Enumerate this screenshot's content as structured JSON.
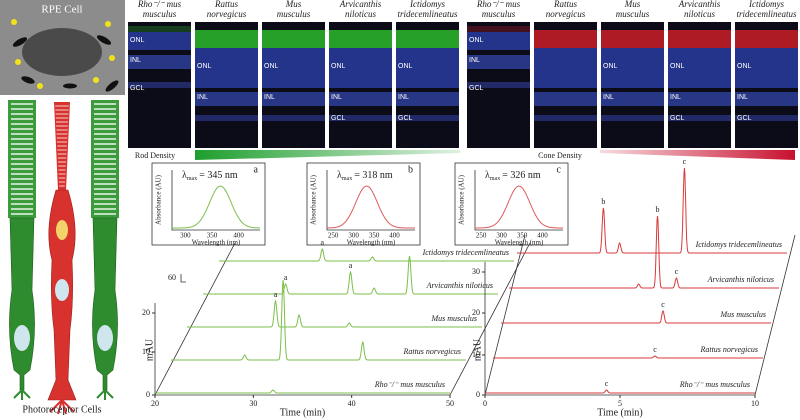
{
  "cell_diagram": {
    "title": "RPE Cell",
    "caption": "Photoreceptor Cells"
  },
  "rod_panels": [
    {
      "species": [
        "Rho⁻/⁻ mus",
        "musculus"
      ],
      "layers": [
        "ONL",
        "INL",
        "GCL"
      ]
    },
    {
      "species": [
        "Rattus",
        "norvegicus"
      ],
      "layers": [
        "ONL",
        "INL"
      ]
    },
    {
      "species": [
        "Mus",
        "musculus"
      ],
      "layers": [
        "ONL",
        "INL"
      ]
    },
    {
      "species": [
        "Arvicanthis",
        "niloticus"
      ],
      "layers": [
        "ONL",
        "INL",
        "GCL"
      ]
    },
    {
      "species": [
        "Ictidomys",
        "tridecemlineatus"
      ],
      "layers": [
        "ONL",
        "INL",
        "GCL"
      ]
    }
  ],
  "cone_panels": [
    {
      "species": [
        "Rho⁻/⁻ mus",
        "musculus"
      ],
      "layers": [
        "ONL",
        "INL",
        "GCL"
      ]
    },
    {
      "species": [
        "Rattus",
        "norvegicus"
      ],
      "layers": []
    },
    {
      "species": [
        "Mus",
        "musculus"
      ],
      "layers": [
        "ONL",
        "INL"
      ]
    },
    {
      "species": [
        "Arvicanthis",
        "niloticus"
      ],
      "layers": [
        "ONL",
        "INL",
        "GCL"
      ]
    },
    {
      "species": [
        "Ictidomys",
        "tridecemlineatus"
      ],
      "layers": [
        "ONL",
        "INL",
        "GCL"
      ]
    }
  ],
  "rod_density": "Rod Density",
  "cone_density": "Cone Density",
  "spectra": [
    {
      "letter": "a",
      "symbol": "λ",
      "subscript": "max",
      "value": "= 345 nm",
      "y_label": "Absorbance (AU)",
      "x_label": "Wavelength (nm)",
      "xticks": [
        "300",
        "350",
        "400"
      ]
    },
    {
      "letter": "b",
      "symbol": "λ",
      "subscript": "max",
      "value": "= 318 nm",
      "y_label": "Absorbance (AU)",
      "x_label": "Wavelength (nm)",
      "xticks": [
        "250",
        "300",
        "350",
        "400"
      ]
    },
    {
      "letter": "c",
      "symbol": "λ",
      "subscript": "max",
      "value": "= 326 nm",
      "y_label": "Absorbance (AU)",
      "x_label": "Wavelength (nm)",
      "xticks": [
        "250",
        "300",
        "350",
        "400"
      ]
    }
  ],
  "chromatograms": [
    {
      "x_label": "Time (min)",
      "y_label": "mAU",
      "xticks": [
        "20",
        "30",
        "40",
        "50"
      ],
      "yticks": [
        "0",
        "10",
        "20"
      ],
      "scale_label": "60",
      "traces": [
        "Rho⁻/⁻ mus musculus",
        "Rattus norvegicus",
        "Mus musculus",
        "Arvicanthis niloticus",
        "Ictidomys tridecemlineatus"
      ],
      "peak_labels": [
        "a",
        "a",
        "a",
        "a"
      ]
    },
    {
      "x_label": "Time (min)",
      "y_label": "mAU",
      "xticks": [
        "0",
        "5",
        "10"
      ],
      "yticks": [
        "0",
        "10",
        "20",
        "30"
      ],
      "traces": [
        "Rho⁻/⁻ mus musculus",
        "Rattus norvegicus",
        "Mus musculus",
        "Arvicanthis niloticus",
        "Ictidomys tridecemlineatus"
      ],
      "peak_labels": [
        "c",
        "c",
        "c",
        "b",
        "c",
        "b",
        "c"
      ]
    }
  ]
}
